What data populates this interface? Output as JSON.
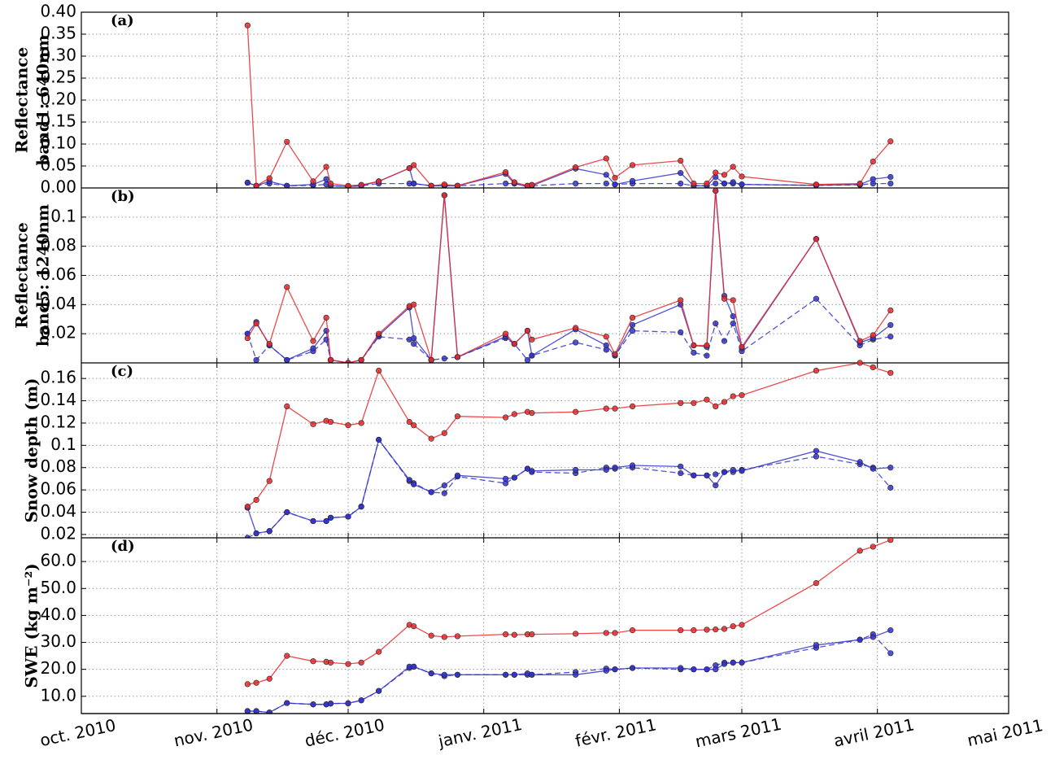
{
  "chart_data": [
    {
      "type": "line",
      "panel_label": "(a)",
      "ylabel": [
        "Reflectance",
        "band1: 640nm"
      ],
      "grid": true,
      "x": [
        38,
        40,
        43,
        47,
        53,
        56,
        57,
        61,
        64,
        68,
        75,
        76,
        80,
        83,
        86,
        97,
        99,
        102,
        103,
        113,
        120,
        122,
        126,
        137,
        140,
        143,
        145,
        147,
        149,
        151,
        168,
        178,
        181,
        185
      ],
      "xlim": [
        0,
        212
      ],
      "ylim": [
        0,
        0.4
      ],
      "yticks": [
        {
          "value": 0,
          "label": "0.00"
        },
        {
          "value": 0.05,
          "label": "0.05"
        },
        {
          "value": 0.1,
          "label": "0.10"
        },
        {
          "value": 0.15,
          "label": "0.15"
        },
        {
          "value": 0.2,
          "label": "0.20"
        },
        {
          "value": 0.25,
          "label": "0.25"
        },
        {
          "value": 0.3,
          "label": "0.30"
        },
        {
          "value": 0.35,
          "label": "0.35"
        },
        {
          "value": 0.4,
          "label": "0.40"
        }
      ],
      "series": [
        {
          "color": "#3333cc",
          "dashed": true,
          "values": [
            0.012,
            0.005,
            0.01,
            0.005,
            0.006,
            0.008,
            0.005,
            0.003,
            0.005,
            0.01,
            0.01,
            0.01,
            0.005,
            0.005,
            0.005,
            0.01,
            0.01,
            0.005,
            0.005,
            0.01,
            0.01,
            0.008,
            0.01,
            0.01,
            0.005,
            0.005,
            0.01,
            0.01,
            0.01,
            0.008,
            0.006,
            0.007,
            0.01,
            0.01
          ]
        },
        {
          "color": "#3333cc",
          "dashed": false,
          "values": [
            0.012,
            0.005,
            0.015,
            0.005,
            0.008,
            0.02,
            0.005,
            0.003,
            0.005,
            0.015,
            0.045,
            0.01,
            0.005,
            0.005,
            0.005,
            0.032,
            0.01,
            0.003,
            0.005,
            0.044,
            0.03,
            0.008,
            0.016,
            0.034,
            0.005,
            0.005,
            0.025,
            0.01,
            0.013,
            0.008,
            0.006,
            0.008,
            0.02,
            0.025
          ]
        },
        {
          "color": "#e8292c",
          "dashed": false,
          "values": [
            0.37,
            0.005,
            0.022,
            0.105,
            0.015,
            0.048,
            0.01,
            0.005,
            0.007,
            0.015,
            0.045,
            0.052,
            0.005,
            0.008,
            0.005,
            0.036,
            0.013,
            0.005,
            0.007,
            0.047,
            0.067,
            0.023,
            0.052,
            0.062,
            0.01,
            0.01,
            0.035,
            0.03,
            0.048,
            0.026,
            0.008,
            0.01,
            0.06,
            0.106
          ]
        }
      ]
    },
    {
      "type": "line",
      "panel_label": "(b)",
      "ylabel": [
        "Reflectance",
        "band5: 1240nm"
      ],
      "grid": true,
      "x": [
        38,
        40,
        43,
        47,
        53,
        56,
        57,
        61,
        64,
        68,
        75,
        76,
        80,
        83,
        86,
        97,
        99,
        102,
        103,
        113,
        120,
        122,
        126,
        137,
        140,
        143,
        145,
        147,
        149,
        151,
        168,
        178,
        181,
        185
      ],
      "xlim": [
        0,
        212
      ],
      "ylim": [
        0,
        0.12
      ],
      "yticks": [
        0.02,
        0.04,
        0.06,
        0.08,
        0.1
      ],
      "series": [
        {
          "color": "#3333cc",
          "dashed": true,
          "values": [
            0.02,
            0.002,
            0.012,
            0.002,
            0.008,
            0.016,
            0.002,
            0.0,
            0.002,
            0.018,
            0.016,
            0.013,
            0.002,
            0.003,
            0.004,
            0.017,
            0.013,
            0.002,
            0.005,
            0.014,
            0.009,
            0.005,
            0.022,
            0.021,
            0.007,
            0.005,
            0.027,
            0.015,
            0.027,
            0.008,
            0.044,
            0.012,
            0.016,
            0.018
          ]
        },
        {
          "color": "#3333cc",
          "dashed": false,
          "values": [
            0.02,
            0.028,
            0.012,
            0.002,
            0.01,
            0.022,
            0.002,
            0.0,
            0.002,
            0.019,
            0.038,
            0.017,
            0.002,
            0.115,
            0.004,
            0.018,
            0.013,
            0.022,
            0.005,
            0.023,
            0.012,
            0.005,
            0.026,
            0.04,
            0.012,
            0.011,
            0.118,
            0.046,
            0.032,
            0.01,
            0.085,
            0.014,
            0.017,
            0.026
          ]
        },
        {
          "color": "#e8292c",
          "dashed": false,
          "values": [
            0.017,
            0.027,
            0.013,
            0.052,
            0.015,
            0.031,
            0.002,
            0.0,
            0.002,
            0.02,
            0.039,
            0.04,
            0.002,
            0.115,
            0.004,
            0.02,
            0.013,
            0.022,
            0.016,
            0.024,
            0.018,
            0.006,
            0.031,
            0.043,
            0.012,
            0.012,
            0.118,
            0.044,
            0.043,
            0.011,
            0.085,
            0.015,
            0.019,
            0.036
          ]
        }
      ]
    },
    {
      "type": "line",
      "panel_label": "(c)",
      "ylabel": [
        "Snow depth (m)"
      ],
      "grid": true,
      "x": [
        38,
        40,
        43,
        47,
        53,
        56,
        57,
        61,
        64,
        68,
        75,
        76,
        80,
        83,
        86,
        97,
        99,
        102,
        103,
        113,
        120,
        122,
        126,
        137,
        140,
        143,
        145,
        147,
        149,
        151,
        168,
        178,
        181,
        185
      ],
      "xlim": [
        0,
        212
      ],
      "ylim": [
        0.017,
        0.174
      ],
      "yticks": [
        0.02,
        0.04,
        0.06,
        0.08,
        0.1,
        0.12,
        0.14,
        0.16
      ],
      "series": [
        {
          "color": "#3333cc",
          "dashed": true,
          "values": [
            0.017,
            0.021,
            0.023,
            0.04,
            0.032,
            0.032,
            0.035,
            0.036,
            0.045,
            0.105,
            0.068,
            0.066,
            0.058,
            0.057,
            0.072,
            0.066,
            0.071,
            0.079,
            0.076,
            0.075,
            0.08,
            0.079,
            0.08,
            0.075,
            0.073,
            0.073,
            0.074,
            0.076,
            0.076,
            0.078,
            0.09,
            0.083,
            0.08,
            0.062
          ]
        },
        {
          "color": "#3333cc",
          "dashed": false,
          "values": [
            0.044,
            0.021,
            0.023,
            0.04,
            0.032,
            0.032,
            0.035,
            0.036,
            0.045,
            0.105,
            0.069,
            0.065,
            0.058,
            0.064,
            0.073,
            0.07,
            0.071,
            0.079,
            0.077,
            0.078,
            0.078,
            0.08,
            0.082,
            0.081,
            0.073,
            0.073,
            0.064,
            0.076,
            0.078,
            0.077,
            0.095,
            0.085,
            0.079,
            0.08
          ]
        },
        {
          "color": "#e8292c",
          "dashed": false,
          "values": [
            0.045,
            0.051,
            0.068,
            0.135,
            0.119,
            0.122,
            0.121,
            0.118,
            0.12,
            0.167,
            0.121,
            0.118,
            0.106,
            0.111,
            0.126,
            0.125,
            0.128,
            0.13,
            0.129,
            0.13,
            0.133,
            0.133,
            0.135,
            0.138,
            0.138,
            0.141,
            0.135,
            0.139,
            0.144,
            0.145,
            0.167,
            0.174,
            0.17,
            0.165
          ]
        }
      ]
    },
    {
      "type": "line",
      "panel_label": "(d)",
      "ylabel": [
        "SWE (kg m⁻²)"
      ],
      "grid": true,
      "x": [
        38,
        40,
        43,
        47,
        53,
        56,
        57,
        61,
        64,
        68,
        75,
        76,
        80,
        83,
        86,
        97,
        99,
        102,
        103,
        113,
        120,
        122,
        126,
        137,
        140,
        143,
        145,
        147,
        149,
        151,
        168,
        178,
        181,
        185
      ],
      "xlim": [
        0,
        212
      ],
      "ylim": [
        3.6,
        68.8
      ],
      "yticks": [
        {
          "value": 10,
          "label": "10.0"
        },
        {
          "value": 20,
          "label": "20.0"
        },
        {
          "value": 30,
          "label": "30.0"
        },
        {
          "value": 40,
          "label": "40.0"
        },
        {
          "value": 50,
          "label": "50.0"
        },
        {
          "value": 60,
          "label": "60.0"
        }
      ],
      "xticks": [
        {
          "value": 0,
          "label": "oct. 2010"
        },
        {
          "value": 31,
          "label": "nov. 2010"
        },
        {
          "value": 61,
          "label": "déc. 2010"
        },
        {
          "value": 92,
          "label": "janv. 2011"
        },
        {
          "value": 123,
          "label": "févr. 2011"
        },
        {
          "value": 151,
          "label": "mars 2011"
        },
        {
          "value": 182,
          "label": "avril 2011"
        },
        {
          "value": 212,
          "label": "mai 2011"
        }
      ],
      "series": [
        {
          "color": "#3333cc",
          "dashed": true,
          "values": [
            4.5,
            4.5,
            4,
            7.5,
            7,
            7,
            7.3,
            7.4,
            8.5,
            12,
            20.5,
            21,
            18.5,
            17.5,
            18,
            18,
            18,
            18,
            18,
            19,
            20.3,
            20,
            20.5,
            20,
            20,
            20,
            21.5,
            22.5,
            22.5,
            22.5,
            28,
            31,
            33,
            26
          ]
        },
        {
          "color": "#3333cc",
          "dashed": false,
          "values": [
            4.5,
            4.5,
            4,
            7.5,
            7,
            7,
            7.3,
            7.4,
            8.5,
            12,
            21,
            21,
            18.5,
            18,
            18,
            18,
            18,
            18.5,
            18,
            18,
            19.5,
            20,
            20.5,
            20.5,
            20,
            20,
            20,
            22,
            22.5,
            22.5,
            29,
            31,
            32,
            34.5
          ]
        },
        {
          "color": "#e8292c",
          "dashed": false,
          "values": [
            14.5,
            15,
            16.5,
            25,
            23,
            22.8,
            22.5,
            22,
            22.5,
            26.5,
            36.5,
            36,
            32.5,
            32,
            32.3,
            33,
            32.8,
            33,
            33,
            33.2,
            33.5,
            33.5,
            34.5,
            34.5,
            34.5,
            34.7,
            34.8,
            35,
            36,
            36.5,
            52,
            64,
            65.5,
            68
          ]
        }
      ]
    }
  ]
}
